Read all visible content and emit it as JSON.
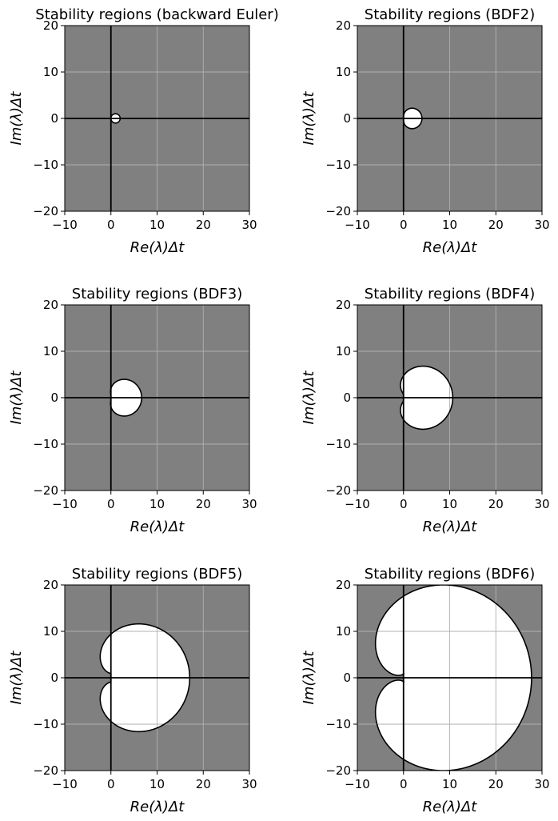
{
  "chart_data": [
    {
      "type": "region",
      "title": "Stability regions (backward Euler)",
      "method": "BE",
      "xlabel": "Re(λ)Δt",
      "ylabel": "Im(λ)Δt",
      "xlim": [
        -10,
        30
      ],
      "ylim": [
        -20,
        20
      ],
      "xticks": [
        -10,
        0,
        10,
        20,
        30
      ],
      "yticks": [
        -20,
        -10,
        0,
        10,
        20
      ],
      "grid": true,
      "region_color": "#808080",
      "unstable_color": "#ffffff"
    },
    {
      "type": "region",
      "title": "Stability regions (BDF2)",
      "method": "BDF2",
      "xlabel": "Re(λ)Δt",
      "ylabel": "Im(λ)Δt",
      "xlim": [
        -10,
        30
      ],
      "ylim": [
        -20,
        20
      ],
      "xticks": [
        -10,
        0,
        10,
        20,
        30
      ],
      "yticks": [
        -20,
        -10,
        0,
        10,
        20
      ],
      "grid": true,
      "region_color": "#808080",
      "unstable_color": "#ffffff"
    },
    {
      "type": "region",
      "title": "Stability regions (BDF3)",
      "method": "BDF3",
      "xlabel": "Re(λ)Δt",
      "ylabel": "Im(λ)Δt",
      "xlim": [
        -10,
        30
      ],
      "ylim": [
        -20,
        20
      ],
      "xticks": [
        -10,
        0,
        10,
        20,
        30
      ],
      "yticks": [
        -20,
        -10,
        0,
        10,
        20
      ],
      "grid": true,
      "region_color": "#808080",
      "unstable_color": "#ffffff"
    },
    {
      "type": "region",
      "title": "Stability regions (BDF4)",
      "method": "BDF4",
      "xlabel": "Re(λ)Δt",
      "ylabel": "Im(λ)Δt",
      "xlim": [
        -10,
        30
      ],
      "ylim": [
        -20,
        20
      ],
      "xticks": [
        -10,
        0,
        10,
        20,
        30
      ],
      "yticks": [
        -20,
        -10,
        0,
        10,
        20
      ],
      "grid": true,
      "region_color": "#808080",
      "unstable_color": "#ffffff"
    },
    {
      "type": "region",
      "title": "Stability regions (BDF5)",
      "method": "BDF5",
      "xlabel": "Re(λ)Δt",
      "ylabel": "Im(λ)Δt",
      "xlim": [
        -10,
        30
      ],
      "ylim": [
        -20,
        20
      ],
      "xticks": [
        -10,
        0,
        10,
        20,
        30
      ],
      "yticks": [
        -20,
        -10,
        0,
        10,
        20
      ],
      "grid": true,
      "region_color": "#808080",
      "unstable_color": "#ffffff"
    },
    {
      "type": "region",
      "title": "Stability regions (BDF6)",
      "method": "BDF6",
      "xlabel": "Re(λ)Δt",
      "ylabel": "Im(λ)Δt",
      "xlim": [
        -10,
        30
      ],
      "ylim": [
        -20,
        20
      ],
      "xticks": [
        -10,
        0,
        10,
        20,
        30
      ],
      "yticks": [
        -20,
        -10,
        0,
        10,
        20
      ],
      "grid": true,
      "region_color": "#808080",
      "unstable_color": "#ffffff"
    }
  ]
}
